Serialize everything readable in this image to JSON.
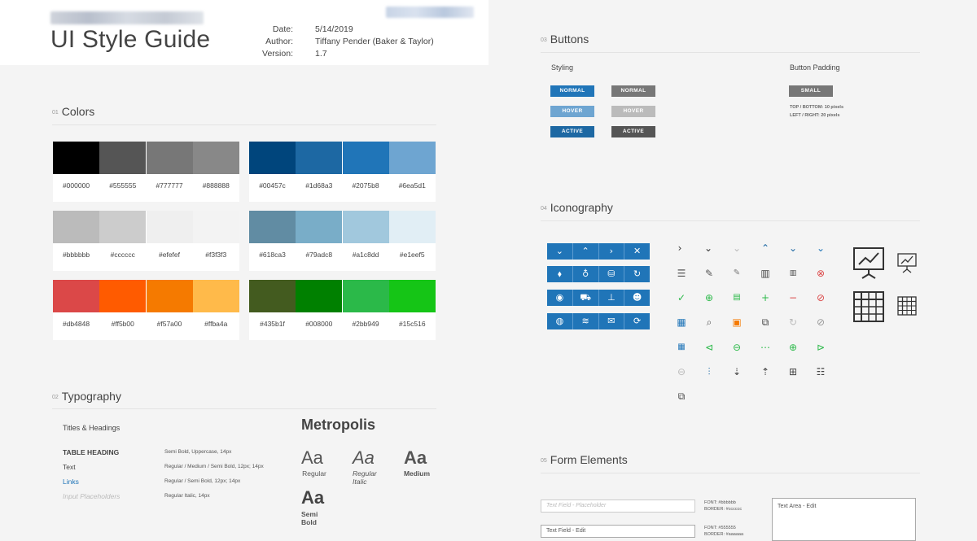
{
  "header": {
    "title": "UI Style Guide",
    "meta": [
      {
        "key": "Date:",
        "value": "5/14/2019"
      },
      {
        "key": "Author:",
        "value": "Tiffany Pender (Baker & Taylor)"
      },
      {
        "key": "Version:",
        "value": "1.7"
      }
    ]
  },
  "sections": {
    "colors": {
      "num": "01",
      "title": "Colors"
    },
    "typography": {
      "num": "02",
      "title": "Typography"
    },
    "buttons": {
      "num": "03",
      "title": "Buttons"
    },
    "iconography": {
      "num": "04",
      "title": "Iconography"
    },
    "forms": {
      "num": "05",
      "title": "Form Elements"
    }
  },
  "colors": {
    "groups": [
      [
        "#000000",
        "#555555",
        "#777777",
        "#888888"
      ],
      [
        "#00457c",
        "#1d68a3",
        "#2075b8",
        "#6ea5d1"
      ],
      [
        "#bbbbbb",
        "#cccccc",
        "#efefef",
        "#f3f3f3"
      ],
      [
        "#618ca3",
        "#79adc8",
        "#a1c8dd",
        "#e1eef5"
      ],
      [
        "#db4848",
        "#ff5b00",
        "#f57a00",
        "#ffba4a"
      ],
      [
        "#435b1f",
        "#008000",
        "#2bb949",
        "#15c516"
      ]
    ]
  },
  "typography": {
    "rows": [
      {
        "label": "Titles & Headings",
        "desc": ""
      },
      {
        "label": "TABLE HEADING",
        "desc": "Semi Bold, Uppercase, 14px"
      },
      {
        "label": "Text",
        "desc": "Regular / Medium / Semi Bold, 12px; 14px"
      },
      {
        "label": "Links",
        "desc": "Regular / Semi Bold, 12px; 14px"
      },
      {
        "label": "Input Placeholders",
        "desc": "Regular Italic, 14px"
      }
    ],
    "font_name": "Metropolis",
    "sample": "Aa",
    "weights": [
      "Regular",
      "Regular Italic",
      "Medium",
      "Semi Bold"
    ]
  },
  "buttons": {
    "styling_label": "Styling",
    "padding_label": "Button Padding",
    "states": [
      "NORMAL",
      "HOVER",
      "ACTIVE"
    ],
    "small_label": "SMALL",
    "padding_notes": [
      "TOP / BOTTOM: 10 pixels",
      "LEFT / RIGHT: 20 pixels"
    ],
    "colors": {
      "normal": "#2075b8",
      "hover": "#6ea5d1",
      "active": "#1d68a3",
      "gray_normal": "#777777",
      "gray_hover": "#bbbbbb",
      "gray_active": "#555555"
    }
  },
  "icon_bars": [
    [
      "chevron-down-icon",
      "chevron-up-icon",
      "chevron-right-icon",
      "close-icon"
    ],
    [
      "tag-icon",
      "lightbulb-icon",
      "database-icon",
      "refresh-icon"
    ],
    [
      "user-circle-icon",
      "cart-icon",
      "hierarchy-icon",
      "users-icon"
    ],
    [
      "globe-icon",
      "layers-icon",
      "mail-icon",
      "sync-icon"
    ]
  ],
  "icon_grid": [
    [
      "chevron-right-icon",
      "chevron-down-icon",
      "chevron-down-light-icon",
      "chevron-up-blue-icon",
      "chevron-down-blue-icon",
      "chevron-down-lightblue-icon"
    ],
    [
      "menu-icon",
      "pencil-icon",
      "pencil-small-icon",
      "trash-icon",
      "trash-small-icon",
      "close-circle-red-icon"
    ],
    [
      "check-circle-icon",
      "plus-circle-icon",
      "document-green-icon",
      "plus-green-icon",
      "minus-red-icon",
      "ban-red-icon"
    ],
    [
      "calendar-icon",
      "zoom-icon",
      "save-orange-icon",
      "copy-icon",
      "refresh-gray-icon",
      "ban-gray-icon"
    ],
    [
      "calendar-small-icon",
      "first-page-icon",
      "back-circle-icon",
      "more-dots-icon",
      "forward-circle-icon",
      "last-page-icon"
    ],
    [
      "minus-circle-gray-icon",
      "sliders-icon",
      "sort-desc-icon",
      "sort-asc-icon",
      "grid-icon",
      "list-icon"
    ],
    [
      "copy-small-icon"
    ]
  ],
  "big_icons": [
    "presentation-chart-large-icon",
    "presentation-chart-small-icon",
    "table-large-icon",
    "table-small-icon"
  ],
  "forms": {
    "text_placeholder": "Text Field - Placeholder",
    "text_value": "Text Field - Edit",
    "textarea_value": "Text Area - Edit",
    "placeholder_note": [
      "FONT: #bbbbbb",
      "BORDER: #cccccc"
    ],
    "edit_note": [
      "FONT: #555555",
      "BORDER: #aaaaaa"
    ]
  }
}
